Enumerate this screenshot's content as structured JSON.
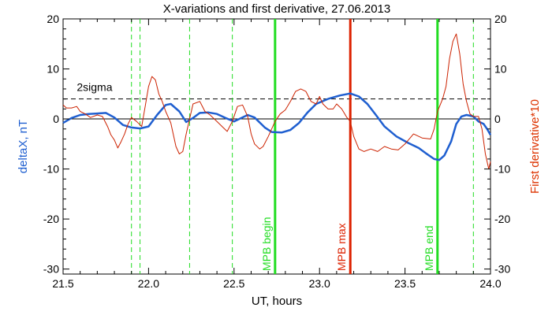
{
  "chart_data": {
    "type": "line",
    "title": "X-variations and first derivative, 27.06.2013",
    "xlabel": "UT, hours",
    "ylabel_left": "deltaX, nT",
    "ylabel_right": "First derivative*10",
    "xlim": [
      21.5,
      24.0
    ],
    "ylim": [
      -31,
      20
    ],
    "xticks": [
      21.5,
      22.0,
      22.5,
      23.0,
      23.5,
      24.0
    ],
    "xtick_labels": [
      "21.5",
      "22.0",
      "22.5",
      "23.0",
      "23.5",
      "24.0"
    ],
    "yticks": [
      -30,
      -20,
      -10,
      0,
      10,
      20
    ],
    "ytick_labels": [
      "-30",
      "-20",
      "-10",
      "0",
      "10",
      "20"
    ],
    "colors": {
      "deltaX": "#1f5fd0",
      "derivative": "#cc2200",
      "green": "#22dd22",
      "red": "#dd2200",
      "left_label": "#1f5fd0",
      "right_label": "#dd3300"
    },
    "annotations": {
      "sigma_label": "2sigma",
      "sigma_level": 4
    },
    "vertical_lines": [
      {
        "x": 21.9,
        "style": "dashed",
        "color": "green"
      },
      {
        "x": 21.95,
        "style": "dashed",
        "color": "green"
      },
      {
        "x": 22.24,
        "style": "dashed",
        "color": "green"
      },
      {
        "x": 22.49,
        "style": "dashed",
        "color": "green"
      },
      {
        "x": 22.74,
        "style": "solid",
        "color": "green",
        "label": "MPB begin"
      },
      {
        "x": 23.18,
        "style": "solid",
        "color": "red",
        "label": "MPB max"
      },
      {
        "x": 23.69,
        "style": "solid",
        "color": "green",
        "label": "MPB end"
      },
      {
        "x": 23.9,
        "style": "dashed",
        "color": "green"
      }
    ],
    "series": [
      {
        "key": "deltaX",
        "points": [
          [
            21.5,
            -0.8
          ],
          [
            21.55,
            0.2
          ],
          [
            21.6,
            0.8
          ],
          [
            21.65,
            1.0
          ],
          [
            21.7,
            1.1
          ],
          [
            21.75,
            1.2
          ],
          [
            21.8,
            0.3
          ],
          [
            21.85,
            -1.2
          ],
          [
            21.9,
            -1.7
          ],
          [
            21.95,
            -1.9
          ],
          [
            22.0,
            -1.5
          ],
          [
            22.05,
            0.8
          ],
          [
            22.1,
            2.8
          ],
          [
            22.13,
            3.0
          ],
          [
            22.18,
            1.5
          ],
          [
            22.22,
            -0.6
          ],
          [
            22.26,
            0.2
          ],
          [
            22.3,
            1.2
          ],
          [
            22.35,
            1.3
          ],
          [
            22.4,
            1.0
          ],
          [
            22.45,
            0.2
          ],
          [
            22.5,
            -0.5
          ],
          [
            22.53,
            0.0
          ],
          [
            22.58,
            0.8
          ],
          [
            22.62,
            0.3
          ],
          [
            22.68,
            -1.7
          ],
          [
            22.72,
            -2.6
          ],
          [
            22.78,
            -2.7
          ],
          [
            22.83,
            -2.2
          ],
          [
            22.88,
            -0.8
          ],
          [
            22.93,
            1.3
          ],
          [
            22.98,
            3.0
          ],
          [
            23.05,
            4.0
          ],
          [
            23.12,
            4.7
          ],
          [
            23.18,
            5.1
          ],
          [
            23.23,
            4.5
          ],
          [
            23.28,
            3.0
          ],
          [
            23.33,
            0.8
          ],
          [
            23.38,
            -1.5
          ],
          [
            23.45,
            -3.5
          ],
          [
            23.52,
            -4.8
          ],
          [
            23.58,
            -5.8
          ],
          [
            23.62,
            -6.8
          ],
          [
            23.67,
            -8.0
          ],
          [
            23.7,
            -8.2
          ],
          [
            23.73,
            -7.3
          ],
          [
            23.77,
            -4.5
          ],
          [
            23.8,
            -1.0
          ],
          [
            23.83,
            0.5
          ],
          [
            23.86,
            0.8
          ],
          [
            23.9,
            0.5
          ],
          [
            23.93,
            -0.5
          ],
          [
            23.96,
            -1.0
          ],
          [
            23.98,
            -2.0
          ],
          [
            24.0,
            -3.2
          ]
        ]
      },
      {
        "key": "derivative",
        "points": [
          [
            21.5,
            2.8
          ],
          [
            21.52,
            2.2
          ],
          [
            21.55,
            2.2
          ],
          [
            21.58,
            2.5
          ],
          [
            21.6,
            1.5
          ],
          [
            21.63,
            1.0
          ],
          [
            21.66,
            0.3
          ],
          [
            21.7,
            0.8
          ],
          [
            21.73,
            0.5
          ],
          [
            21.76,
            -1.5
          ],
          [
            21.78,
            -3.2
          ],
          [
            21.8,
            -4.2
          ],
          [
            21.82,
            -5.8
          ],
          [
            21.84,
            -4.5
          ],
          [
            21.86,
            -3.0
          ],
          [
            21.88,
            -1.0
          ],
          [
            21.9,
            0.3
          ],
          [
            21.93,
            -0.5
          ],
          [
            21.96,
            -1.5
          ],
          [
            21.98,
            2.5
          ],
          [
            22.0,
            6.5
          ],
          [
            22.02,
            8.5
          ],
          [
            22.04,
            7.8
          ],
          [
            22.06,
            5.0
          ],
          [
            22.08,
            3.5
          ],
          [
            22.1,
            1.5
          ],
          [
            22.13,
            -0.8
          ],
          [
            22.16,
            -5.5
          ],
          [
            22.18,
            -7.0
          ],
          [
            22.2,
            -6.5
          ],
          [
            22.22,
            -3.0
          ],
          [
            22.24,
            0.0
          ],
          [
            22.26,
            3.0
          ],
          [
            22.3,
            3.5
          ],
          [
            22.33,
            1.5
          ],
          [
            22.36,
            0.8
          ],
          [
            22.4,
            -0.5
          ],
          [
            22.43,
            -1.5
          ],
          [
            22.46,
            -2.5
          ],
          [
            22.49,
            -0.5
          ],
          [
            22.52,
            2.5
          ],
          [
            22.55,
            2.8
          ],
          [
            22.58,
            0.5
          ],
          [
            22.6,
            -3.0
          ],
          [
            22.62,
            -5.0
          ],
          [
            22.65,
            -6.0
          ],
          [
            22.67,
            -5.5
          ],
          [
            22.7,
            -3.5
          ],
          [
            22.74,
            -0.5
          ],
          [
            22.77,
            1.0
          ],
          [
            22.8,
            1.8
          ],
          [
            22.83,
            3.5
          ],
          [
            22.86,
            5.5
          ],
          [
            22.89,
            6.0
          ],
          [
            22.92,
            5.5
          ],
          [
            22.95,
            3.5
          ],
          [
            22.98,
            3.0
          ],
          [
            23.0,
            4.5
          ],
          [
            23.02,
            3.0
          ],
          [
            23.05,
            2.0
          ],
          [
            23.08,
            2.0
          ],
          [
            23.1,
            3.0
          ],
          [
            23.13,
            2.0
          ],
          [
            23.16,
            0.3
          ],
          [
            23.18,
            -0.5
          ],
          [
            23.2,
            -3.5
          ],
          [
            23.23,
            -6.0
          ],
          [
            23.26,
            -6.5
          ],
          [
            23.3,
            -6.0
          ],
          [
            23.34,
            -6.5
          ],
          [
            23.38,
            -5.5
          ],
          [
            23.42,
            -6.0
          ],
          [
            23.46,
            -6.2
          ],
          [
            23.5,
            -5.0
          ],
          [
            23.55,
            -3.0
          ],
          [
            23.6,
            -3.8
          ],
          [
            23.65,
            -4.0
          ],
          [
            23.67,
            -2.0
          ],
          [
            23.69,
            1.5
          ],
          [
            23.72,
            4.0
          ],
          [
            23.74,
            6.5
          ],
          [
            23.76,
            12.0
          ],
          [
            23.78,
            15.5
          ],
          [
            23.8,
            17.0
          ],
          [
            23.82,
            13.0
          ],
          [
            23.84,
            7.0
          ],
          [
            23.86,
            3.5
          ],
          [
            23.88,
            1.0
          ],
          [
            23.9,
            0.5
          ],
          [
            23.93,
            0.5
          ],
          [
            23.95,
            -2.0
          ],
          [
            23.97,
            -7.0
          ],
          [
            23.99,
            -10.0
          ],
          [
            24.0,
            -8.5
          ]
        ]
      }
    ]
  }
}
